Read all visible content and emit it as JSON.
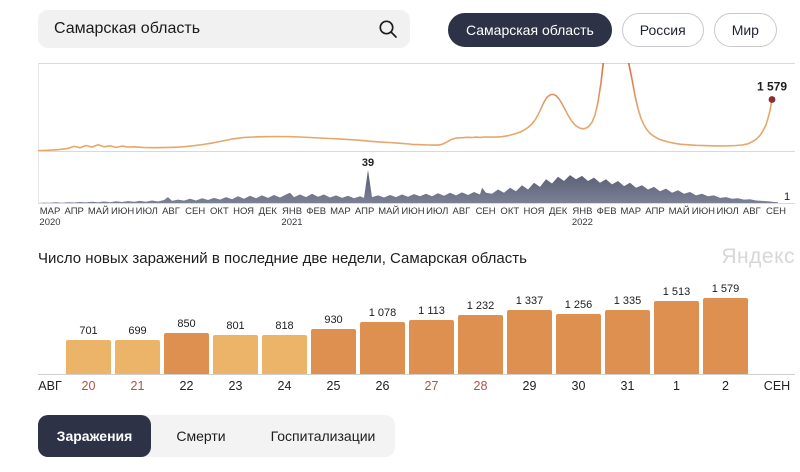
{
  "header": {
    "search": {
      "value": "Самарская область"
    },
    "region_tabs": [
      {
        "label": "Самарская область",
        "selected": true
      },
      {
        "label": "Россия",
        "selected": false
      },
      {
        "label": "Мир",
        "selected": false
      }
    ]
  },
  "timeline": {
    "months": [
      "МАР",
      "АПР",
      "МАЙ",
      "ИЮН",
      "ИЮЛ",
      "АВГ",
      "СЕН",
      "ОКТ",
      "НОЯ",
      "ДЕК",
      "ЯНВ",
      "ФЕВ",
      "МАР",
      "АПР",
      "МАЙ",
      "ИЮН",
      "ИЮЛ",
      "АВГ",
      "СЕН",
      "ОКТ",
      "НОЯ",
      "ДЕК",
      "ЯНВ",
      "ФЕВ",
      "МАР",
      "АПР",
      "МАЙ",
      "ИЮН",
      "ИЮЛ",
      "АВГ",
      "СЕН"
    ],
    "years": [
      {
        "label": "2020",
        "month_index": 0
      },
      {
        "label": "2021",
        "month_index": 10
      },
      {
        "label": "2022",
        "month_index": 22
      }
    ]
  },
  "section": {
    "title": "Число новых заражений в последние две недели, Самарская область",
    "watermark": "Яндекс"
  },
  "chart_data": [
    {
      "type": "line",
      "name": "infections-timeline",
      "title": "Новые заражения по дням, МАР 2020 — СЕН 2022",
      "current_value": 1579,
      "current_label": "1 579",
      "y_scale_max": 2700,
      "clipped_at_top": true,
      "points": [
        [
          0,
          10
        ],
        [
          10,
          20
        ],
        [
          20,
          40
        ],
        [
          30,
          80
        ],
        [
          36,
          140
        ],
        [
          42,
          100
        ],
        [
          48,
          170
        ],
        [
          54,
          120
        ],
        [
          60,
          190
        ],
        [
          66,
          130
        ],
        [
          72,
          160
        ],
        [
          78,
          110
        ],
        [
          84,
          150
        ],
        [
          90,
          120
        ],
        [
          96,
          130
        ],
        [
          105,
          110
        ],
        [
          115,
          100
        ],
        [
          125,
          105
        ],
        [
          135,
          115
        ],
        [
          145,
          130
        ],
        [
          155,
          160
        ],
        [
          165,
          200
        ],
        [
          175,
          250
        ],
        [
          185,
          310
        ],
        [
          195,
          370
        ],
        [
          205,
          410
        ],
        [
          215,
          430
        ],
        [
          227,
          440
        ],
        [
          240,
          445
        ],
        [
          252,
          440
        ],
        [
          262,
          430
        ],
        [
          272,
          415
        ],
        [
          282,
          400
        ],
        [
          292,
          385
        ],
        [
          301,
          370
        ],
        [
          311,
          350
        ],
        [
          321,
          330
        ],
        [
          326,
          315
        ],
        [
          331,
          300
        ],
        [
          341,
          280
        ],
        [
          351,
          260
        ],
        [
          361,
          240
        ],
        [
          371,
          215
        ],
        [
          375,
          200
        ],
        [
          380,
          195
        ],
        [
          385,
          190
        ],
        [
          390,
          185
        ],
        [
          395,
          182
        ],
        [
          400,
          180
        ],
        [
          403,
          195
        ],
        [
          406,
          230
        ],
        [
          409,
          280
        ],
        [
          412,
          330
        ],
        [
          415,
          370
        ],
        [
          418,
          395
        ],
        [
          422,
          405
        ],
        [
          426,
          412
        ],
        [
          430,
          420
        ],
        [
          434,
          415
        ],
        [
          438,
          425
        ],
        [
          442,
          418
        ],
        [
          446,
          428
        ],
        [
          452,
          430
        ],
        [
          458,
          428
        ],
        [
          464,
          440
        ],
        [
          470,
          470
        ],
        [
          476,
          520
        ],
        [
          482,
          580
        ],
        [
          486,
          640
        ],
        [
          490,
          720
        ],
        [
          494,
          830
        ],
        [
          497,
          950
        ],
        [
          500,
          1100
        ],
        [
          503,
          1300
        ],
        [
          506,
          1500
        ],
        [
          509,
          1650
        ],
        [
          512,
          1720
        ],
        [
          515,
          1740
        ],
        [
          518,
          1700
        ],
        [
          521,
          1600
        ],
        [
          524,
          1450
        ],
        [
          527,
          1280
        ],
        [
          530,
          1100
        ],
        [
          533,
          950
        ],
        [
          536,
          830
        ],
        [
          539,
          750
        ],
        [
          542,
          700
        ],
        [
          545,
          680
        ],
        [
          548,
          700
        ],
        [
          551,
          760
        ],
        [
          554,
          880
        ],
        [
          557,
          1100
        ],
        [
          560,
          1500
        ],
        [
          563,
          2100
        ],
        [
          566,
          2900
        ],
        [
          570,
          3800
        ],
        [
          574,
          4400
        ],
        [
          578,
          4700
        ],
        [
          582,
          4400
        ],
        [
          586,
          3600
        ],
        [
          590,
          2800
        ],
        [
          594,
          2200
        ],
        [
          597,
          1700
        ],
        [
          600,
          1300
        ],
        [
          603,
          1000
        ],
        [
          606,
          800
        ],
        [
          609,
          650
        ],
        [
          612,
          540
        ],
        [
          616,
          450
        ],
        [
          620,
          380
        ],
        [
          624,
          330
        ],
        [
          630,
          280
        ],
        [
          636,
          240
        ],
        [
          642,
          210
        ],
        [
          650,
          190
        ],
        [
          658,
          175
        ],
        [
          666,
          165
        ],
        [
          674,
          160
        ],
        [
          682,
          158
        ],
        [
          690,
          160
        ],
        [
          698,
          170
        ],
        [
          704,
          185
        ],
        [
          710,
          220
        ],
        [
          714,
          280
        ],
        [
          718,
          360
        ],
        [
          722,
          480
        ],
        [
          725,
          620
        ],
        [
          728,
          800
        ],
        [
          730,
          1000
        ],
        [
          732,
          1250
        ],
        [
          734,
          1579
        ]
      ]
    },
    {
      "type": "area",
      "name": "deaths-timeline",
      "title": "Смерти по дням, МАР 2020 — СЕН 2022",
      "peak_value": 39,
      "peak_label": "39",
      "current_value": 1,
      "current_label": "1",
      "points": [
        [
          0,
          0
        ],
        [
          6,
          0.5
        ],
        [
          12,
          0.3
        ],
        [
          18,
          0.8
        ],
        [
          24,
          0.4
        ],
        [
          30,
          1
        ],
        [
          36,
          0.6
        ],
        [
          42,
          1.2
        ],
        [
          48,
          0.7
        ],
        [
          54,
          1.5
        ],
        [
          60,
          0.8
        ],
        [
          66,
          1.8
        ],
        [
          72,
          1
        ],
        [
          78,
          2
        ],
        [
          84,
          1.2
        ],
        [
          90,
          2.2
        ],
        [
          96,
          1.4
        ],
        [
          102,
          2.5
        ],
        [
          108,
          1.5
        ],
        [
          114,
          3
        ],
        [
          120,
          1.8
        ],
        [
          126,
          3.5
        ],
        [
          130,
          7
        ],
        [
          134,
          2.5
        ],
        [
          140,
          4
        ],
        [
          146,
          2.8
        ],
        [
          152,
          5
        ],
        [
          158,
          3
        ],
        [
          164,
          5.5
        ],
        [
          170,
          3.5
        ],
        [
          176,
          6
        ],
        [
          182,
          4
        ],
        [
          188,
          7
        ],
        [
          194,
          4.5
        ],
        [
          200,
          8
        ],
        [
          206,
          5
        ],
        [
          212,
          8.5
        ],
        [
          218,
          5.5
        ],
        [
          224,
          9
        ],
        [
          230,
          6
        ],
        [
          236,
          9.5
        ],
        [
          242,
          6.5
        ],
        [
          248,
          10
        ],
        [
          252,
          12
        ],
        [
          256,
          7
        ],
        [
          262,
          10
        ],
        [
          268,
          7
        ],
        [
          274,
          11
        ],
        [
          280,
          7.5
        ],
        [
          286,
          10
        ],
        [
          292,
          6.5
        ],
        [
          298,
          9
        ],
        [
          304,
          6
        ],
        [
          310,
          8.5
        ],
        [
          316,
          5.5
        ],
        [
          322,
          8
        ],
        [
          326,
          6
        ],
        [
          330,
          39
        ],
        [
          334,
          7
        ],
        [
          340,
          9
        ],
        [
          346,
          6.5
        ],
        [
          352,
          9.5
        ],
        [
          358,
          7
        ],
        [
          364,
          10
        ],
        [
          370,
          7.5
        ],
        [
          376,
          10.5
        ],
        [
          382,
          8
        ],
        [
          388,
          11
        ],
        [
          394,
          8
        ],
        [
          400,
          11.5
        ],
        [
          406,
          8.5
        ],
        [
          412,
          12
        ],
        [
          418,
          9
        ],
        [
          424,
          12.5
        ],
        [
          430,
          9.5
        ],
        [
          436,
          13
        ],
        [
          442,
          10
        ],
        [
          444,
          18
        ],
        [
          448,
          12
        ],
        [
          454,
          11
        ],
        [
          460,
          16
        ],
        [
          466,
          12
        ],
        [
          472,
          18
        ],
        [
          478,
          14
        ],
        [
          484,
          21
        ],
        [
          490,
          16
        ],
        [
          496,
          24
        ],
        [
          502,
          19
        ],
        [
          508,
          28
        ],
        [
          514,
          23
        ],
        [
          520,
          31
        ],
        [
          526,
          26
        ],
        [
          532,
          33
        ],
        [
          538,
          28
        ],
        [
          544,
          32
        ],
        [
          550,
          26
        ],
        [
          556,
          30
        ],
        [
          562,
          24
        ],
        [
          568,
          28
        ],
        [
          574,
          22
        ],
        [
          580,
          26
        ],
        [
          586,
          20
        ],
        [
          592,
          24
        ],
        [
          598,
          18
        ],
        [
          604,
          21
        ],
        [
          610,
          16
        ],
        [
          616,
          19
        ],
        [
          622,
          14
        ],
        [
          628,
          17
        ],
        [
          634,
          12
        ],
        [
          640,
          15
        ],
        [
          646,
          11
        ],
        [
          652,
          13
        ],
        [
          658,
          9
        ],
        [
          664,
          11
        ],
        [
          670,
          8
        ],
        [
          676,
          9
        ],
        [
          682,
          6
        ],
        [
          688,
          7
        ],
        [
          694,
          5
        ],
        [
          700,
          5.5
        ],
        [
          706,
          4
        ],
        [
          712,
          4.5
        ],
        [
          718,
          3
        ],
        [
          724,
          2.5
        ],
        [
          730,
          2
        ],
        [
          736,
          1.2
        ],
        [
          740,
          1
        ]
      ]
    },
    {
      "type": "bar",
      "name": "last-two-weeks-infections",
      "title": "Число новых заражений в последние две недели, Самарская область",
      "categories": [
        "20",
        "21",
        "22",
        "23",
        "24",
        "25",
        "26",
        "27",
        "28",
        "29",
        "30",
        "31",
        "1",
        "2"
      ],
      "values": [
        701,
        699,
        850,
        801,
        818,
        930,
        1078,
        1113,
        1232,
        1337,
        1256,
        1335,
        1513,
        1579
      ],
      "value_labels": [
        "701",
        "699",
        "850",
        "801",
        "818",
        "930",
        "1 078",
        "1 113",
        "1 232",
        "1 337",
        "1 256",
        "1 335",
        "1 513",
        "1 579"
      ],
      "weekend_indices": [
        0,
        1,
        7,
        8
      ],
      "left_axis_label": "АВГ",
      "right_axis_label": "СЕН",
      "ylim": [
        0,
        1579
      ],
      "color_threshold": 850
    }
  ],
  "bottom_tabs": [
    {
      "label": "Заражения",
      "selected": true
    },
    {
      "label": "Смерти",
      "selected": false
    },
    {
      "label": "Госпитализации",
      "selected": false
    }
  ],
  "colors": {
    "accent_navy": "#2d3246",
    "bar_low": "#ecb469",
    "bar_high": "#de9050",
    "weekend_red": "#b4503c",
    "line_orange": "#e5a76c",
    "line_peak_red": "#c0392f",
    "end_dot_red": "#8d2d2c",
    "deaths_fill_dark": "#4d5369",
    "deaths_fill_light": "#7b8094",
    "grid": "#d9d9d9",
    "watermark_gray": "#d7d7d9"
  }
}
